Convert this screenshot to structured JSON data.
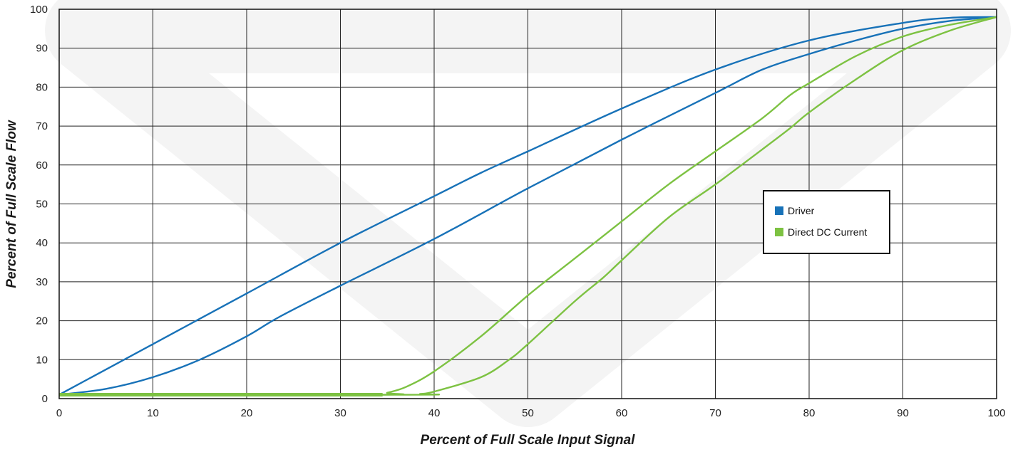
{
  "chart_data": {
    "type": "line",
    "xlabel": "Percent of Full Scale Input Signal",
    "ylabel": "Percent of Full Scale Flow",
    "xlim": [
      0,
      100
    ],
    "ylim": [
      0,
      100
    ],
    "x_ticks": [
      "0",
      "10",
      "20",
      "30",
      "40",
      "50",
      "60",
      "70",
      "80",
      "90",
      "100"
    ],
    "y_ticks": [
      "0",
      "10",
      "20",
      "30",
      "40",
      "50",
      "60",
      "70",
      "80",
      "90",
      "100"
    ],
    "grid": true,
    "legend_position": "right",
    "legend": [
      {
        "label": "Driver",
        "color": "#1872b8"
      },
      {
        "label": "Direct DC Current",
        "color": "#7dc242"
      }
    ],
    "series": [
      {
        "name": "Driver",
        "color": "#1872b8",
        "x": [
          0,
          10,
          20,
          30,
          40,
          45,
          50,
          60,
          70,
          80,
          90,
          95,
          100
        ],
        "y": [
          1,
          14,
          27,
          40,
          52,
          58,
          63.5,
          74.5,
          84.5,
          92,
          96.5,
          97.8,
          98
        ]
      },
      {
        "name": "Driver",
        "color": "#1872b8",
        "x": [
          0,
          5,
          10,
          15,
          20,
          23.5,
          30,
          40,
          50,
          60,
          70,
          75,
          80,
          85,
          90,
          95,
          100
        ],
        "y": [
          1,
          2.5,
          5.5,
          10,
          16,
          21,
          29,
          41,
          54,
          66.5,
          78.5,
          84.5,
          88.5,
          92,
          95,
          97,
          98
        ]
      },
      {
        "name": "Direct DC Current",
        "color": "#7dc242",
        "x": [
          0,
          34,
          35,
          37,
          40,
          45,
          50,
          55,
          60,
          65,
          70,
          75,
          78,
          80,
          85,
          90,
          95,
          100
        ],
        "y": [
          1,
          1,
          1.5,
          3,
          7,
          16,
          26.5,
          36,
          45.5,
          55,
          63.5,
          72,
          78,
          81,
          88,
          93,
          96,
          98
        ]
      },
      {
        "name": "Direct DC Current",
        "color": "#7dc242",
        "x": [
          0,
          37.5,
          38.5,
          40,
          45,
          48,
          50,
          55,
          58,
          60,
          65,
          70,
          75,
          78,
          80,
          85,
          90,
          95,
          100
        ],
        "y": [
          1,
          1,
          1.2,
          1.8,
          5.5,
          10,
          14,
          25,
          31,
          35.5,
          46.5,
          55,
          64,
          69.5,
          73.5,
          82,
          89.5,
          94.5,
          98
        ]
      }
    ]
  }
}
